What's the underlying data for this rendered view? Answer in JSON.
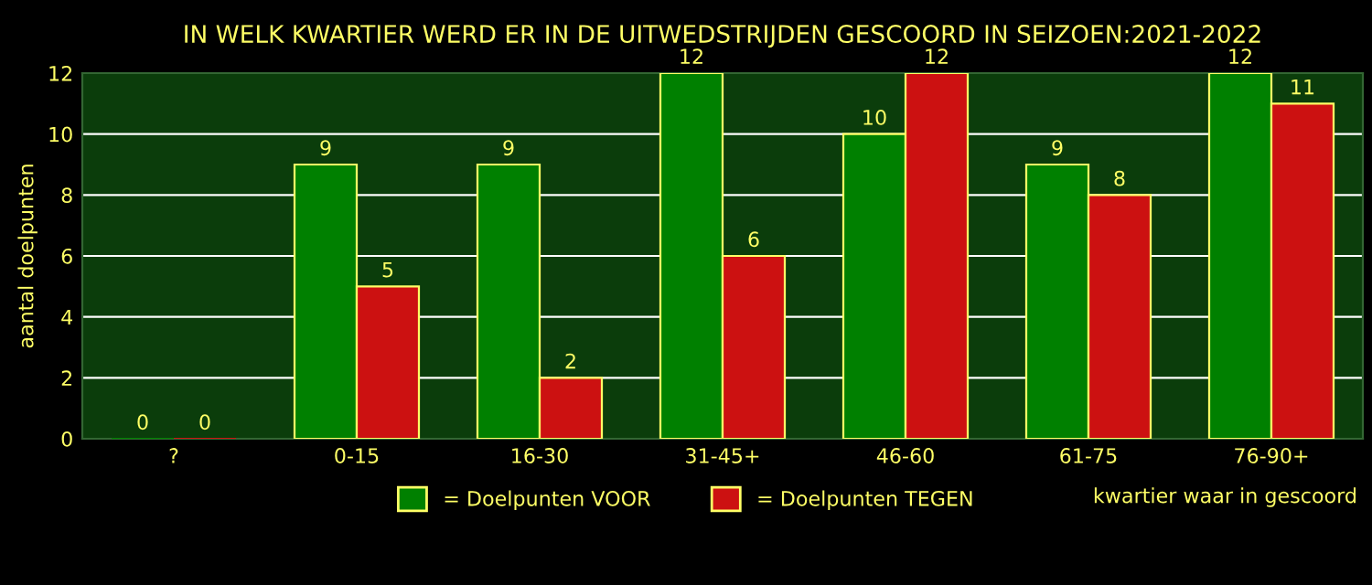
{
  "chart_data": {
    "type": "bar",
    "title": "IN WELK KWARTIER WERD ER IN DE UITWEDSTRIJDEN GESCOORD IN SEIZOEN:2021-2022",
    "xlabel": "kwartier waar in gescoord",
    "ylabel": "aantal doelpunten",
    "categories": [
      "?",
      "0-15",
      "16-30",
      "31-45+",
      "46-60",
      "61-75",
      "76-90+"
    ],
    "series": [
      {
        "name": "= Doelpunten VOOR",
        "color": "#008000",
        "values": [
          0,
          9,
          9,
          12,
          10,
          9,
          12
        ]
      },
      {
        "name": "= Doelpunten TEGEN",
        "color": "#cc1111",
        "values": [
          0,
          5,
          2,
          6,
          12,
          8,
          11
        ]
      }
    ],
    "ylim": [
      0,
      12
    ],
    "yticks": [
      0,
      2,
      4,
      6,
      8,
      10,
      12
    ],
    "grid": "y",
    "legend": "bottom",
    "data_labels": true
  }
}
